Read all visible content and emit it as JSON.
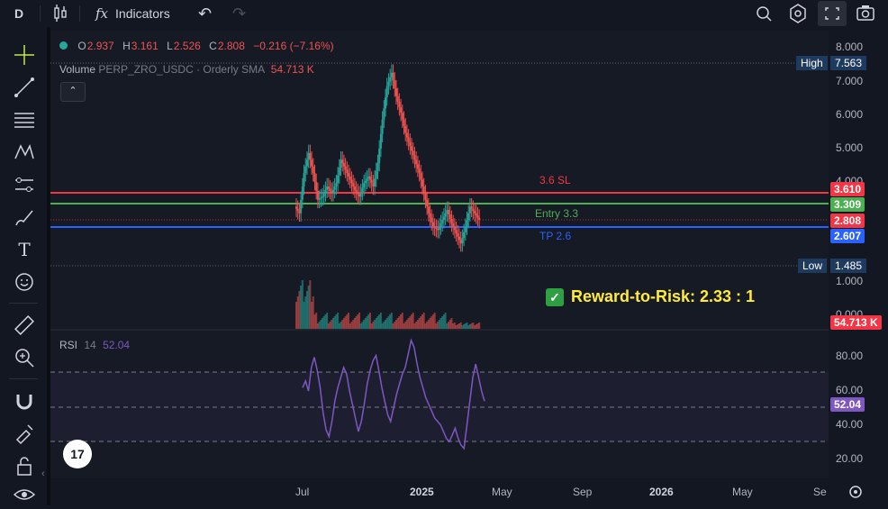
{
  "topbar": {
    "interval": "D",
    "indicators_label": "Indicators"
  },
  "legend": {
    "o_label": "O",
    "o_value": "2.937",
    "h_label": "H",
    "h_value": "3.161",
    "l_label": "L",
    "l_value": "2.526",
    "c_label": "C",
    "c_value": "2.808",
    "change": "−0.216 (−7.16%)"
  },
  "volume_legend": {
    "label": "Volume",
    "symbol": "PERP_ZRO_USDC · Orderly SMA",
    "value": "54.713 K"
  },
  "rsi_legend": {
    "label": "RSI",
    "length": "14",
    "value": "52.04"
  },
  "price_axis": {
    "ticks": [
      "8.000",
      "7.000",
      "6.000",
      "5.000",
      "4.000",
      "1.000",
      "0.000"
    ],
    "high_label": "High",
    "high_value": "7.563",
    "low_label": "Low",
    "low_value": "1.485",
    "sl_tag": "3.610",
    "entry_tag": "3.309",
    "last_tag": "2.808",
    "tp_tag": "2.607",
    "volume_tag": "54.713 K"
  },
  "rsi_axis": {
    "ticks": [
      "80.00",
      "60.00",
      "40.00",
      "20.00"
    ],
    "value_tag": "52.04"
  },
  "time_axis": {
    "labels": [
      "Jul",
      "2025",
      "May",
      "Sep",
      "2026",
      "May",
      "Se"
    ]
  },
  "annotations": {
    "sl": "3.6 SL",
    "entry": "Entry 3.3",
    "tp": "TP 2.6",
    "reward_risk": "Reward-to-Risk: 2.33 : 1"
  },
  "colors": {
    "up": "#26a69a",
    "down": "#ef5350",
    "sl_line": "#f23645",
    "entry_line": "#4caf50",
    "tp_line": "#2962ff",
    "rsi_line": "#7e57c2",
    "rr_text": "#ffeb3b"
  },
  "tv_logo": "17",
  "chart_data": {
    "type": "line",
    "series": [
      {
        "name": "RSI",
        "values": [
          60,
          64,
          58,
          72,
          78,
          70,
          60,
          45,
          35,
          31,
          40,
          52,
          60,
          66,
          72,
          68,
          58,
          50,
          42,
          34,
          40,
          50,
          62,
          70,
          76,
          79,
          70,
          60,
          52,
          44,
          40,
          48,
          56,
          62,
          68,
          72,
          80,
          88,
          84,
          74,
          66,
          60,
          54,
          50,
          46,
          42,
          40,
          38,
          34,
          30,
          28,
          32,
          36,
          30,
          26,
          24,
          38,
          52,
          66,
          74,
          66,
          58,
          52
        ]
      }
    ],
    "ylim": [
      10,
      90
    ],
    "levels": {
      "sl": 3.6,
      "entry": 3.3,
      "tp": 2.6
    }
  }
}
